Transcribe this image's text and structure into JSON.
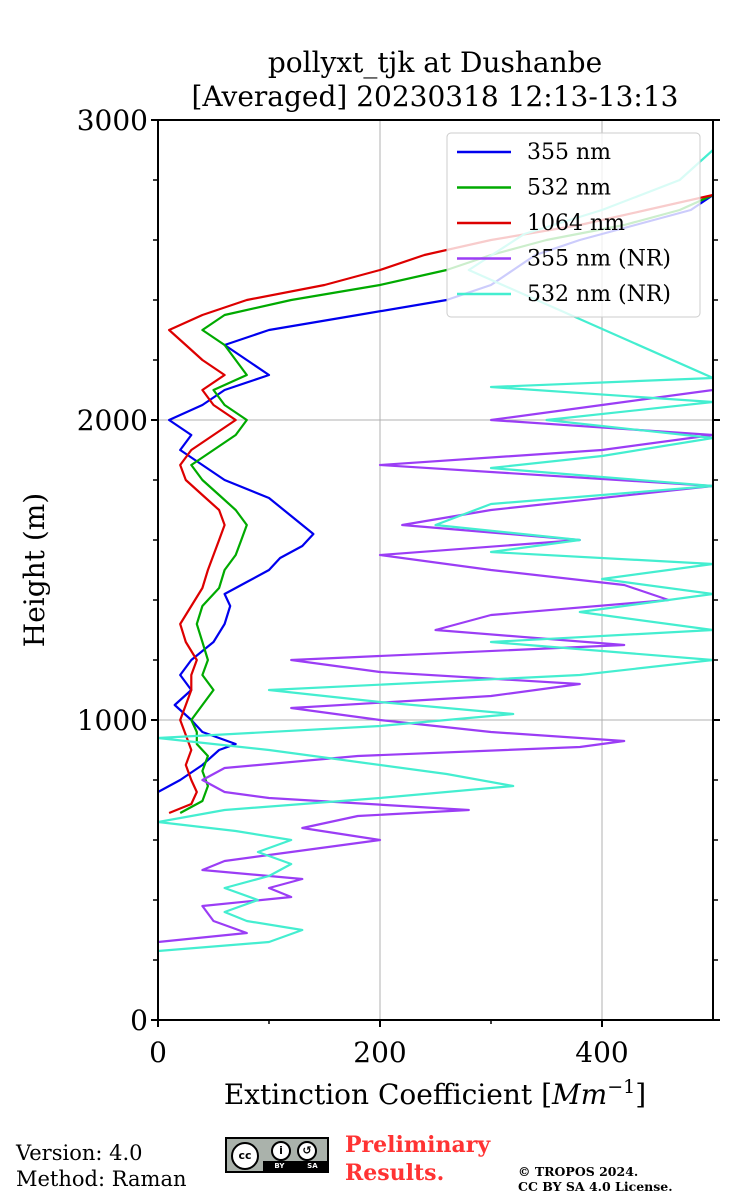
{
  "chart_data": {
    "type": "line",
    "title": "pollyxt_tjk at Dushanbe",
    "subtitle": "[Averaged] 20230318 12:13-13:13",
    "xlabel": "Extinction Coefficient",
    "xlabel_unit_base": "Mm",
    "xlabel_unit_exp": "−1",
    "ylabel": "Height (m)",
    "xlim": [
      0,
      500
    ],
    "ylim": [
      0,
      3000
    ],
    "x_ticks": [
      0,
      200,
      400
    ],
    "y_ticks": [
      0,
      1000,
      2000,
      3000
    ],
    "grid": true,
    "legend_position": "top-right",
    "series": [
      {
        "name": "355 nm",
        "color": "#0000ee",
        "points": [
          [
            0,
            760
          ],
          [
            20,
            800
          ],
          [
            40,
            850
          ],
          [
            55,
            900
          ],
          [
            70,
            920
          ],
          [
            40,
            960
          ],
          [
            30,
            1000
          ],
          [
            15,
            1050
          ],
          [
            30,
            1100
          ],
          [
            20,
            1150
          ],
          [
            30,
            1200
          ],
          [
            50,
            1260
          ],
          [
            60,
            1320
          ],
          [
            65,
            1380
          ],
          [
            60,
            1420
          ],
          [
            80,
            1460
          ],
          [
            100,
            1500
          ],
          [
            110,
            1540
          ],
          [
            130,
            1580
          ],
          [
            140,
            1620
          ],
          [
            120,
            1680
          ],
          [
            100,
            1740
          ],
          [
            60,
            1800
          ],
          [
            40,
            1850
          ],
          [
            20,
            1900
          ],
          [
            30,
            1950
          ],
          [
            10,
            2000
          ],
          [
            40,
            2050
          ],
          [
            60,
            2100
          ],
          [
            100,
            2150
          ],
          [
            80,
            2200
          ],
          [
            60,
            2250
          ],
          [
            100,
            2300
          ],
          [
            180,
            2350
          ],
          [
            260,
            2400
          ],
          [
            300,
            2450
          ],
          [
            320,
            2500
          ],
          [
            340,
            2550
          ],
          [
            380,
            2600
          ],
          [
            430,
            2650
          ],
          [
            480,
            2700
          ],
          [
            500,
            2750
          ]
        ]
      },
      {
        "name": "532 nm",
        "color": "#00aa00",
        "points": [
          [
            20,
            690
          ],
          [
            40,
            730
          ],
          [
            45,
            780
          ],
          [
            40,
            830
          ],
          [
            45,
            880
          ],
          [
            35,
            920
          ],
          [
            35,
            960
          ],
          [
            30,
            1000
          ],
          [
            40,
            1050
          ],
          [
            50,
            1100
          ],
          [
            40,
            1150
          ],
          [
            45,
            1200
          ],
          [
            40,
            1260
          ],
          [
            35,
            1320
          ],
          [
            40,
            1380
          ],
          [
            55,
            1440
          ],
          [
            60,
            1500
          ],
          [
            70,
            1550
          ],
          [
            75,
            1600
          ],
          [
            80,
            1650
          ],
          [
            70,
            1700
          ],
          [
            55,
            1750
          ],
          [
            40,
            1800
          ],
          [
            30,
            1850
          ],
          [
            50,
            1900
          ],
          [
            70,
            1950
          ],
          [
            80,
            2000
          ],
          [
            60,
            2050
          ],
          [
            50,
            2100
          ],
          [
            80,
            2150
          ],
          [
            70,
            2200
          ],
          [
            60,
            2250
          ],
          [
            40,
            2300
          ],
          [
            60,
            2350
          ],
          [
            120,
            2400
          ],
          [
            200,
            2450
          ],
          [
            260,
            2500
          ],
          [
            300,
            2550
          ],
          [
            350,
            2600
          ],
          [
            420,
            2650
          ],
          [
            470,
            2700
          ],
          [
            500,
            2750
          ]
        ]
      },
      {
        "name": "1064 nm",
        "color": "#dd0000",
        "points": [
          [
            10,
            690
          ],
          [
            30,
            720
          ],
          [
            35,
            760
          ],
          [
            30,
            800
          ],
          [
            25,
            850
          ],
          [
            30,
            900
          ],
          [
            25,
            950
          ],
          [
            20,
            1000
          ],
          [
            25,
            1050
          ],
          [
            30,
            1100
          ],
          [
            30,
            1150
          ],
          [
            35,
            1200
          ],
          [
            25,
            1260
          ],
          [
            20,
            1320
          ],
          [
            30,
            1380
          ],
          [
            40,
            1440
          ],
          [
            45,
            1500
          ],
          [
            50,
            1550
          ],
          [
            55,
            1600
          ],
          [
            60,
            1650
          ],
          [
            55,
            1700
          ],
          [
            40,
            1750
          ],
          [
            25,
            1800
          ],
          [
            20,
            1850
          ],
          [
            30,
            1900
          ],
          [
            50,
            1950
          ],
          [
            70,
            2000
          ],
          [
            50,
            2050
          ],
          [
            40,
            2100
          ],
          [
            60,
            2150
          ],
          [
            40,
            2200
          ],
          [
            25,
            2250
          ],
          [
            10,
            2300
          ],
          [
            40,
            2350
          ],
          [
            80,
            2400
          ],
          [
            150,
            2450
          ],
          [
            200,
            2500
          ],
          [
            240,
            2550
          ],
          [
            300,
            2600
          ],
          [
            380,
            2650
          ],
          [
            440,
            2700
          ],
          [
            500,
            2750
          ]
        ]
      },
      {
        "name": "355 nm (NR)",
        "color": "#9b3df5",
        "points": [
          [
            0,
            260
          ],
          [
            80,
            290
          ],
          [
            50,
            330
          ],
          [
            40,
            380
          ],
          [
            120,
            410
          ],
          [
            100,
            440
          ],
          [
            130,
            470
          ],
          [
            40,
            500
          ],
          [
            60,
            530
          ],
          [
            120,
            560
          ],
          [
            200,
            600
          ],
          [
            130,
            640
          ],
          [
            180,
            680
          ],
          [
            280,
            700
          ],
          [
            100,
            740
          ],
          [
            60,
            760
          ],
          [
            40,
            800
          ],
          [
            60,
            840
          ],
          [
            180,
            880
          ],
          [
            380,
            910
          ],
          [
            420,
            930
          ],
          [
            300,
            960
          ],
          [
            200,
            1000
          ],
          [
            120,
            1040
          ],
          [
            300,
            1080
          ],
          [
            380,
            1120
          ],
          [
            200,
            1160
          ],
          [
            120,
            1200
          ],
          [
            420,
            1250
          ],
          [
            250,
            1300
          ],
          [
            300,
            1350
          ],
          [
            460,
            1400
          ],
          [
            420,
            1450
          ],
          [
            300,
            1500
          ],
          [
            200,
            1550
          ],
          [
            380,
            1600
          ],
          [
            220,
            1650
          ],
          [
            300,
            1700
          ],
          [
            500,
            1780
          ],
          [
            200,
            1850
          ],
          [
            400,
            1900
          ],
          [
            500,
            1950
          ],
          [
            300,
            2000
          ],
          [
            400,
            2050
          ],
          [
            500,
            2100
          ]
        ]
      },
      {
        "name": "532 nm (NR)",
        "color": "#44eed0",
        "points": [
          [
            0,
            230
          ],
          [
            100,
            260
          ],
          [
            130,
            300
          ],
          [
            80,
            330
          ],
          [
            60,
            360
          ],
          [
            90,
            400
          ],
          [
            60,
            440
          ],
          [
            100,
            480
          ],
          [
            120,
            520
          ],
          [
            90,
            560
          ],
          [
            120,
            600
          ],
          [
            70,
            630
          ],
          [
            0,
            660
          ],
          [
            60,
            700
          ],
          [
            200,
            740
          ],
          [
            320,
            780
          ],
          [
            260,
            820
          ],
          [
            180,
            860
          ],
          [
            100,
            900
          ],
          [
            0,
            940
          ],
          [
            200,
            980
          ],
          [
            320,
            1020
          ],
          [
            200,
            1060
          ],
          [
            100,
            1100
          ],
          [
            380,
            1150
          ],
          [
            500,
            1200
          ],
          [
            300,
            1260
          ],
          [
            500,
            1300
          ],
          [
            380,
            1360
          ],
          [
            500,
            1420
          ],
          [
            400,
            1470
          ],
          [
            500,
            1520
          ],
          [
            300,
            1560
          ],
          [
            380,
            1600
          ],
          [
            250,
            1650
          ],
          [
            300,
            1720
          ],
          [
            500,
            1780
          ],
          [
            300,
            1840
          ],
          [
            400,
            1880
          ],
          [
            500,
            1940
          ],
          [
            350,
            2000
          ],
          [
            500,
            2060
          ],
          [
            300,
            2110
          ],
          [
            500,
            2140
          ],
          [
            280,
            2500
          ],
          [
            330,
            2620
          ],
          [
            400,
            2700
          ],
          [
            470,
            2800
          ],
          [
            500,
            2900
          ]
        ]
      }
    ]
  },
  "footer": {
    "version": "Version: 4.0",
    "method": "Method: Raman",
    "license_badge": {
      "cc": "cc",
      "by": "BY",
      "sa": "SA"
    },
    "preliminary_line1": "Preliminary",
    "preliminary_line2": "Results.",
    "copyright_line1": "© TROPOS 2024.",
    "copyright_line2": "CC BY SA 4.0 License."
  }
}
